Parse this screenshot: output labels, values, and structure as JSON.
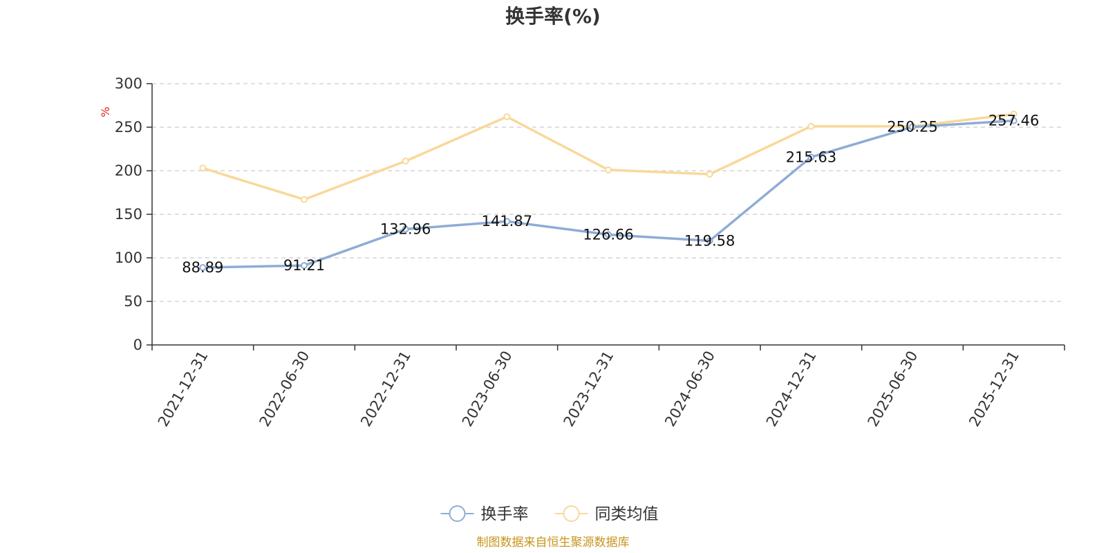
{
  "chart_data": {
    "type": "line",
    "title": "换手率(%)",
    "ylabel": "%",
    "ylim": [
      0,
      300
    ],
    "yticks": [
      0,
      50,
      100,
      150,
      200,
      250,
      300
    ],
    "categories": [
      "2021-12-31",
      "2022-06-30",
      "2022-12-31",
      "2023-06-30",
      "2023-12-31",
      "2024-06-30",
      "2024-12-31",
      "2025-06-30",
      "2025-12-31"
    ],
    "series": [
      {
        "name": "换手率",
        "color": "#8EACD6",
        "values": [
          88.89,
          91.21,
          132.96,
          141.87,
          126.66,
          119.58,
          215.63,
          250.25,
          257.46
        ],
        "labels": [
          "88.89",
          "91.21",
          "132.96",
          "141.87",
          "126.66",
          "119.58",
          "215.63",
          "250.25",
          "257.46"
        ]
      },
      {
        "name": "同类均值",
        "color": "#F9D899",
        "values": [
          203,
          167,
          211,
          262,
          201,
          196,
          251,
          251,
          265
        ]
      }
    ],
    "grid": "horizontal-dashed",
    "legend_position": "bottom-center"
  },
  "source_note": "制图数据来自恒生聚源数据库",
  "colors": {
    "axis": "#333333",
    "grid": "#cccccc",
    "unit": "#e02020",
    "source": "#c8951e"
  }
}
